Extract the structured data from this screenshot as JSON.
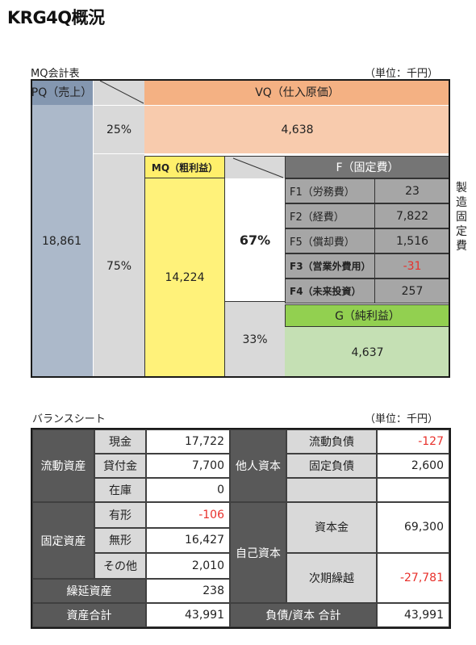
{
  "page_title": "KRG4Q概況",
  "mq": {
    "caption": "MQ会計表",
    "unit": "（単位：千円）",
    "pq_header": "PQ（売上）",
    "pq_value": "18,861",
    "vq_header": "VQ（仕入原価）",
    "vq_pct": "25%",
    "vq_value": "4,638",
    "mq_pct": "75%",
    "mq_header": "MQ（粗利益）",
    "mq_value": "14,224",
    "f_pct": "67%",
    "g_pct": "33%",
    "f_header": "F（固定費）",
    "f_items": [
      {
        "label": "F1（労務費）",
        "value": "23",
        "negative": false
      },
      {
        "label": "F2（経費）",
        "value": "7,822",
        "negative": false
      },
      {
        "label": "F5（償却費）",
        "value": "1,516",
        "negative": false
      },
      {
        "label": "F3（営業外費用）",
        "value": "-31",
        "negative": true
      },
      {
        "label": "F4（未来投資）",
        "value": "257",
        "negative": false
      }
    ],
    "side_note": "製造固定費",
    "g_header": "G（純利益）",
    "g_value": "4,637"
  },
  "bs": {
    "caption": "バランスシート",
    "unit": "（単位：千円）",
    "assets": {
      "current_label": "流動資産",
      "current_items": [
        {
          "label": "現金",
          "value": "17,722",
          "negative": false
        },
        {
          "label": "貸付金",
          "value": "7,700",
          "negative": false
        },
        {
          "label": "在庫",
          "value": "0",
          "negative": false
        }
      ],
      "fixed_label": "固定資産",
      "fixed_items": [
        {
          "label": "有形",
          "value": "-106",
          "negative": true
        },
        {
          "label": "無形",
          "value": "16,427",
          "negative": false
        },
        {
          "label": "その他",
          "value": "2,010",
          "negative": false
        }
      ],
      "deferred_label": "繰延資産",
      "deferred_value": "238",
      "total_label": "資産合計",
      "total_value": "43,991"
    },
    "liabilities": {
      "other_label": "他人資本",
      "items": [
        {
          "label": "流動負債",
          "value": "-127",
          "negative": true
        },
        {
          "label": "固定負債",
          "value": "2,600",
          "negative": false
        }
      ],
      "equity_label": "自己資本",
      "equity_items": [
        {
          "label": "資本金",
          "value": "69,300",
          "negative": false
        },
        {
          "label": "次期繰越",
          "value": "-27,781",
          "negative": true
        }
      ],
      "total_label": "負債/資本 合計",
      "total_value": "43,991"
    }
  },
  "colors": {
    "pq": "#8497b0",
    "vq_header": "#f4b183",
    "vq_body": "#f8cbad",
    "mq": "#ffef6b",
    "f_header": "#757575",
    "f_rows": "#a6a6a6",
    "g_header": "#92d050",
    "g_body": "#c5e0b4",
    "gray": "#d9d9d9",
    "dark": "#595959",
    "negative": "#e8302b"
  }
}
